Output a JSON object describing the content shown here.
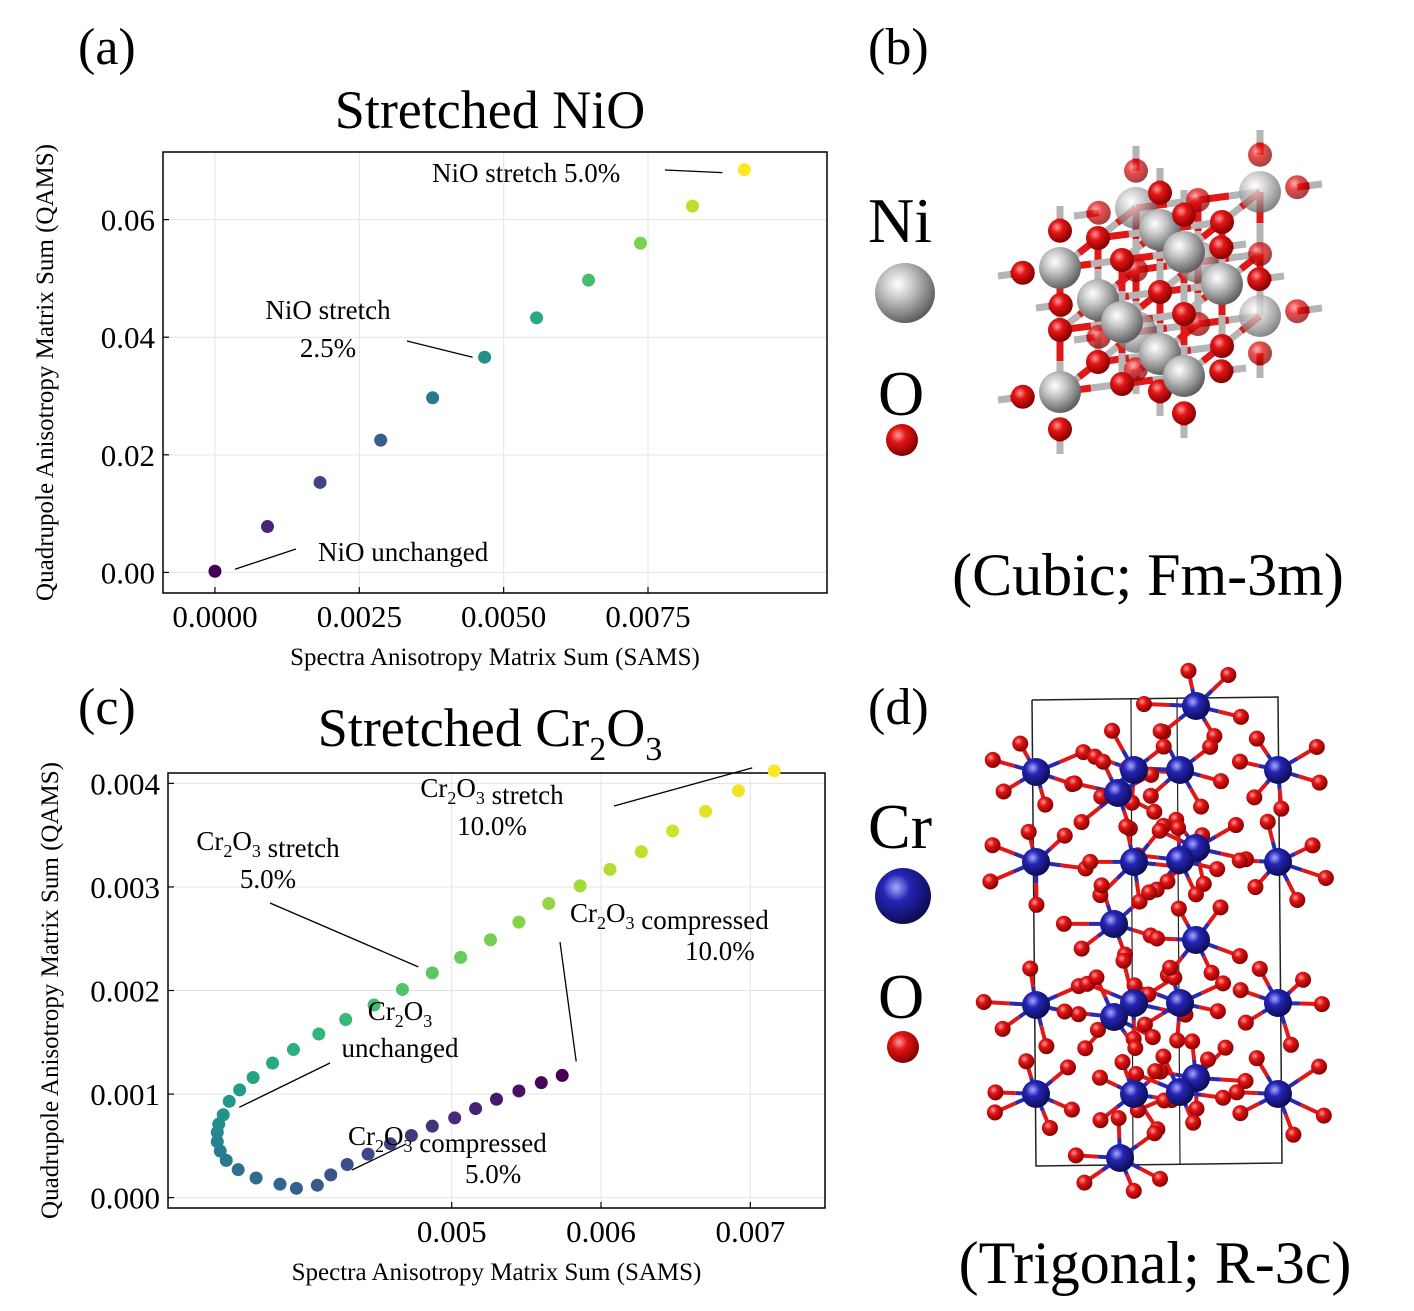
{
  "chart_data": [
    {
      "panel": "(a)",
      "type": "scatter",
      "title": "Stretched NiO",
      "xlabel": "Spectra Anisotropy Matrix Sum (SAMS)",
      "ylabel": "Quadrupole Anisotropy Matrix Sum (QAMS)",
      "xlim": [
        -0.0009,
        0.0106
      ],
      "ylim": [
        -0.0035,
        0.0715
      ],
      "xticks": [
        "0.0000",
        "0.0025",
        "0.0050",
        "0.0075"
      ],
      "xtick_values": [
        0,
        0.0025,
        0.005,
        0.0075
      ],
      "yticks": [
        "0.00",
        "0.02",
        "0.04",
        "0.06"
      ],
      "ytick_values": [
        0,
        0.02,
        0.04,
        0.06
      ],
      "grid": true,
      "colormap": "viridis",
      "x": [
        0.0,
        0.00091,
        0.00182,
        0.00287,
        0.00377,
        0.00467,
        0.00557,
        0.00647,
        0.00737,
        0.00827,
        0.00917
      ],
      "y": [
        0.0002,
        0.0078,
        0.0153,
        0.0225,
        0.0297,
        0.0366,
        0.0433,
        0.0497,
        0.056,
        0.0623,
        0.0685
      ],
      "annotations": [
        {
          "text": "NiO unchanged",
          "point": 0
        },
        {
          "text": [
            "NiO stretch",
            "2.5%"
          ],
          "point": 5
        },
        {
          "text": "NiO stretch 5.0%",
          "point": 10
        }
      ]
    },
    {
      "panel": "(c)",
      "type": "scatter",
      "title": "Stretched Cr2O3",
      "xlabel": "Spectra Anisotropy Matrix Sum (SAMS)",
      "ylabel": "Quadrupole Anisotropy Matrix Sum (QAMS)",
      "xlim": [
        0.0031,
        0.0075
      ],
      "ylim": [
        -0.0001,
        0.0041
      ],
      "xticks": [
        "0.005",
        "0.006",
        "0.007"
      ],
      "xtick_values": [
        0.005,
        0.006,
        0.007
      ],
      "yticks": [
        "0.000",
        "0.001",
        "0.002",
        "0.003",
        "0.004"
      ],
      "ytick_values": [
        0,
        0.001,
        0.002,
        0.003,
        0.004
      ],
      "grid": true,
      "colormap": "viridis",
      "x": [
        0.00574,
        0.0056,
        0.00545,
        0.0053,
        0.00516,
        0.00502,
        0.00487,
        0.00473,
        0.00459,
        0.00444,
        0.0043,
        0.00419,
        0.0041,
        0.00396,
        0.00385,
        0.00369,
        0.00357,
        0.00349,
        0.00345,
        0.00343,
        0.00343,
        0.00344,
        0.00347,
        0.00351,
        0.00358,
        0.00367,
        0.0038,
        0.00394,
        0.00411,
        0.00429,
        0.00448,
        0.00467,
        0.00487,
        0.00506,
        0.00526,
        0.00545,
        0.00565,
        0.00586,
        0.00606,
        0.00627,
        0.00648,
        0.0067,
        0.00692,
        0.00716
      ],
      "y": [
        0.00118,
        0.00111,
        0.00103,
        0.00095,
        0.00086,
        0.00077,
        0.00069,
        0.0006,
        0.00052,
        0.00042,
        0.00032,
        0.00022,
        0.00012,
        9e-05,
        0.00013,
        0.00019,
        0.00027,
        0.00036,
        0.00045,
        0.00054,
        0.00063,
        0.00071,
        0.0008,
        0.00093,
        0.00104,
        0.00116,
        0.0013,
        0.00143,
        0.00158,
        0.00172,
        0.00186,
        0.00201,
        0.00217,
        0.00232,
        0.00249,
        0.00266,
        0.00284,
        0.00301,
        0.00317,
        0.00334,
        0.00354,
        0.00373,
        0.00393,
        0.00412
      ],
      "annotations": [
        {
          "text": [
            "Cr2O3 compressed",
            "10.0%"
          ],
          "point": 0
        },
        {
          "text": [
            "Cr2O3 compressed",
            "5.0%"
          ],
          "point": 8
        },
        {
          "text": [
            "Cr2O3",
            "unchanged"
          ],
          "point": 23
        },
        {
          "text": [
            "Cr2O3 stretch",
            "5.0%"
          ],
          "point": 32
        },
        {
          "text": [
            "Cr2O3 stretch",
            "10.0%"
          ],
          "point": 43
        }
      ]
    }
  ],
  "panels": {
    "a": {
      "label": "(a)"
    },
    "b": {
      "label": "(b)",
      "caption": "(Cubic; Fm-3m)",
      "legend": [
        {
          "name": "Ni",
          "color": "#b8b8b8"
        },
        {
          "name": "O",
          "color": "#e01818"
        }
      ]
    },
    "c": {
      "label": "(c)"
    },
    "d": {
      "label": "(d)",
      "caption": "(Trigonal; R-3c)",
      "legend": [
        {
          "name": "Cr",
          "color": "#1e1ea8"
        },
        {
          "name": "O",
          "color": "#e01818"
        }
      ]
    }
  }
}
